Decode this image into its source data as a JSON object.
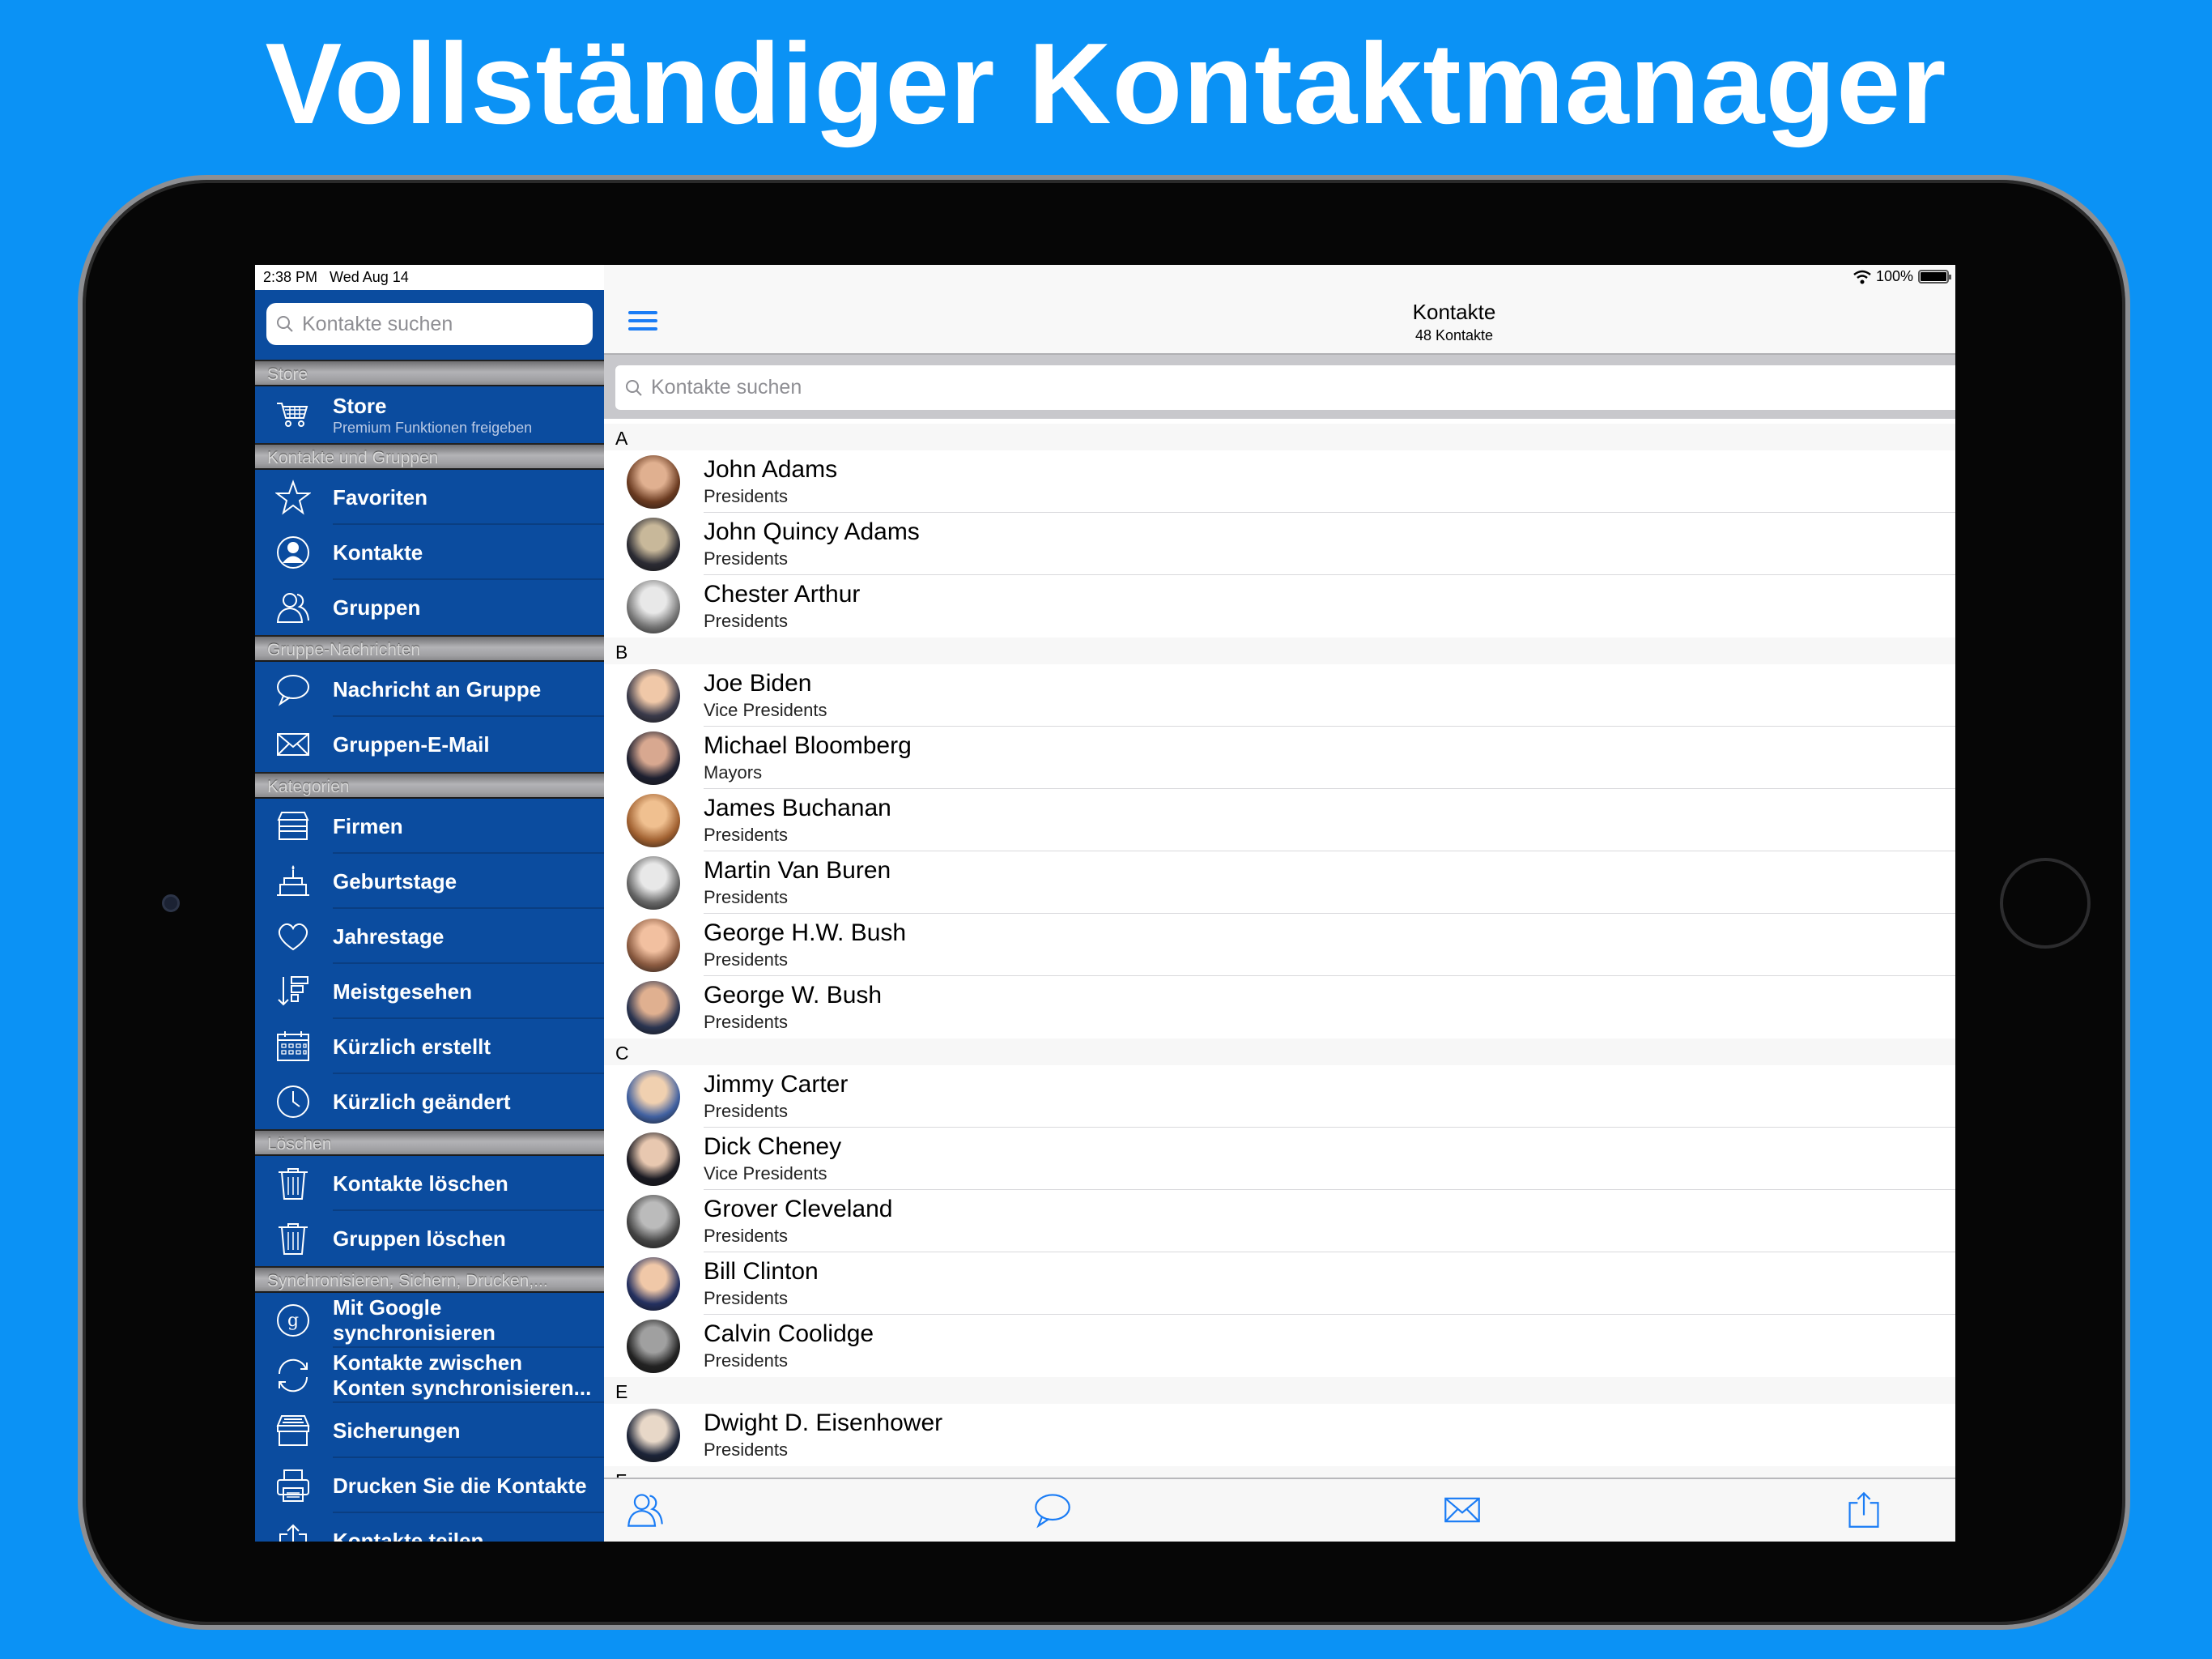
{
  "headline": "Vollständiger Kontaktmanager",
  "colors": {
    "background": "#0b92f5",
    "sidebar": "#0b4c9f",
    "accent": "#1a7cf5"
  },
  "status_bar": {
    "time_date": "2:38 PM   Wed Aug 14",
    "battery": "100%",
    "wifi_icon": "wifi-icon",
    "battery_level": 100
  },
  "sidebar": {
    "search_placeholder": "Kontakte suchen",
    "sections": [
      {
        "header": "Store",
        "items": [
          {
            "label": "Store",
            "sub": "Premium Funktionen freigeben",
            "icon": "cart-icon"
          }
        ]
      },
      {
        "header": "Kontakte und Gruppen",
        "items": [
          {
            "label": "Favoriten",
            "icon": "star-icon"
          },
          {
            "label": "Kontakte",
            "icon": "person-icon"
          },
          {
            "label": "Gruppen",
            "icon": "group-icon"
          }
        ]
      },
      {
        "header": "Gruppe-Nachrichten",
        "items": [
          {
            "label": "Nachricht an Gruppe",
            "icon": "chat-bubble-icon"
          },
          {
            "label": "Gruppen-E-Mail",
            "icon": "envelope-icon"
          }
        ]
      },
      {
        "header": "Kategorien",
        "items": [
          {
            "label": "Firmen",
            "icon": "store-icon"
          },
          {
            "label": "Geburtstage",
            "icon": "cake-icon"
          },
          {
            "label": "Jahrestage",
            "icon": "heart-icon"
          },
          {
            "label": "Meistgesehen",
            "icon": "sort-icon"
          },
          {
            "label": "Kürzlich erstellt",
            "icon": "calendar-icon"
          },
          {
            "label": "Kürzlich geändert",
            "icon": "clock-icon"
          }
        ]
      },
      {
        "header": "Löschen",
        "items": [
          {
            "label": "Kontakte löschen",
            "icon": "trash-icon"
          },
          {
            "label": "Gruppen löschen",
            "icon": "trash-icon"
          }
        ]
      },
      {
        "header": "Synchronisieren, Sichern, Drucken,...",
        "items": [
          {
            "label": "Mit Google synchronisieren",
            "icon": "google-icon"
          },
          {
            "label": "Kontakte zwischen Konten synchronisieren...",
            "icon": "sync-icon"
          },
          {
            "label": "Sicherungen",
            "icon": "archive-box-icon"
          },
          {
            "label": "Drucken Sie die Kontakte",
            "icon": "printer-icon"
          },
          {
            "label": "Kontakte teilen",
            "icon": "share-icon"
          }
        ]
      }
    ]
  },
  "main": {
    "title": "Kontakte",
    "subtitle": "48 Kontakte",
    "search_placeholder": "Kontakte suchen",
    "sections": [
      {
        "letter": "A",
        "contacts": [
          {
            "name": "John Adams",
            "group": "Presidents"
          },
          {
            "name": "John Quincy Adams",
            "group": "Presidents"
          },
          {
            "name": "Chester Arthur",
            "group": "Presidents"
          }
        ]
      },
      {
        "letter": "B",
        "contacts": [
          {
            "name": "Joe Biden",
            "group": "Vice Presidents"
          },
          {
            "name": "Michael Bloomberg",
            "group": "Mayors"
          },
          {
            "name": "James Buchanan",
            "group": "Presidents"
          },
          {
            "name": "Martin Van Buren",
            "group": "Presidents"
          },
          {
            "name": "George H.W. Bush",
            "group": "Presidents"
          },
          {
            "name": "George W. Bush",
            "group": "Presidents"
          }
        ]
      },
      {
        "letter": "C",
        "contacts": [
          {
            "name": "Jimmy Carter",
            "group": "Presidents"
          },
          {
            "name": "Dick Cheney",
            "group": "Vice Presidents"
          },
          {
            "name": "Grover Cleveland",
            "group": "Presidents"
          },
          {
            "name": "Bill Clinton",
            "group": "Presidents"
          },
          {
            "name": "Calvin Coolidge",
            "group": "Presidents"
          }
        ]
      },
      {
        "letter": "E",
        "contacts": [
          {
            "name": "Dwight D. Eisenhower",
            "group": "Presidents"
          }
        ]
      },
      {
        "letter": "F",
        "contacts": []
      }
    ],
    "toolbar": [
      {
        "icon": "group-icon"
      },
      {
        "icon": "chat-bubble-icon"
      },
      {
        "icon": "envelope-icon"
      },
      {
        "icon": "share-icon"
      }
    ]
  }
}
